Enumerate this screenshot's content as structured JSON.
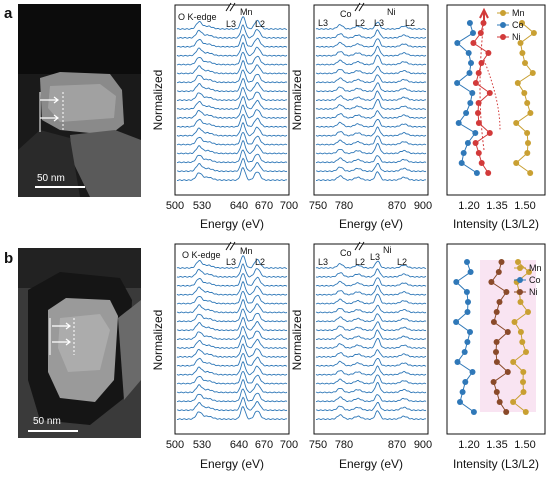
{
  "colors": {
    "spectra": "#2f78b8",
    "mn": "#c9a032",
    "co": "#2f78b8",
    "ni": "#d23a3a",
    "ni_b": "#8a4a2a",
    "highlight": "#f6d8ec"
  },
  "panels": [
    {
      "label": "a",
      "image": {
        "scale_bar": "50 nm"
      },
      "spectra": {
        "oxygen_mn": {
          "ylabel": "Normalized",
          "xlabel": "Energy (eV)",
          "edge_labels": [
            "O K-edge",
            "L3",
            "Mn",
            "L2"
          ],
          "xticks": [
            "500",
            "530",
            "640",
            "670",
            "700"
          ]
        },
        "co_ni": {
          "ylabel": "Normalized",
          "xlabel": "Energy (eV)",
          "edge_labels": [
            "L3",
            "Co",
            "L2",
            "L3",
            "Ni",
            "L2"
          ],
          "xticks": [
            "750",
            "780",
            "870",
            "900"
          ]
        }
      },
      "intensity": {
        "xlabel": "Intensity (L3/L2)",
        "xticks": [
          "1.20",
          "1.35",
          "1.50"
        ],
        "legend": [
          "Mn",
          "Co",
          "Ni"
        ]
      }
    },
    {
      "label": "b",
      "image": {
        "scale_bar": "50 nm"
      },
      "spectra": {
        "oxygen_mn": {
          "ylabel": "Normalized",
          "xlabel": "Energy (eV)",
          "edge_labels": [
            "O K-edge",
            "L3",
            "Mn",
            "L2"
          ],
          "xticks": [
            "500",
            "530",
            "640",
            "670",
            "700"
          ]
        },
        "co_ni": {
          "ylabel": "Normalized",
          "xlabel": "Energy (eV)",
          "edge_labels": [
            "L3",
            "Co",
            "L2",
            "L3",
            "Ni",
            "L2"
          ],
          "xticks": [
            "750",
            "780",
            "870",
            "900"
          ]
        }
      },
      "intensity": {
        "xlabel": "Intensity (L3/L2)",
        "xticks": [
          "1.20",
          "1.35",
          "1.50"
        ],
        "legend": [
          "Mn",
          "Co",
          "Ni"
        ]
      }
    }
  ]
}
